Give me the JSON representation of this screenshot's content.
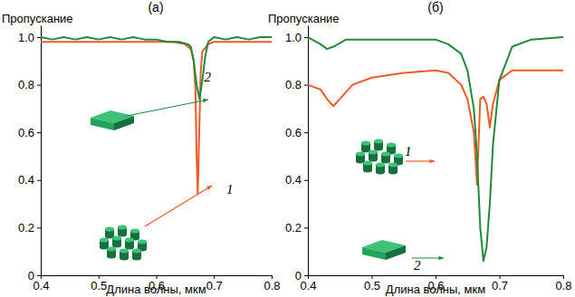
{
  "chart_data": [
    {
      "type": "line",
      "title": "(а)",
      "y_label": "Пропускание",
      "x_label": "Длина волны, мкм",
      "xlim": [
        0.4,
        0.8
      ],
      "xticks": [
        0.4,
        0.5,
        0.6,
        0.7,
        0.8
      ],
      "ylim": [
        0,
        1.05
      ],
      "yticks": [
        0,
        0.2,
        0.4,
        0.6,
        0.8,
        {
          "value": 1,
          "label": "1.0"
        }
      ],
      "series": [
        {
          "name": "1",
          "color": "#f05a24",
          "x": [
            0.4,
            0.45,
            0.5,
            0.55,
            0.6,
            0.63,
            0.65,
            0.66,
            0.665,
            0.668,
            0.67,
            0.672,
            0.674,
            0.677,
            0.68,
            0.69,
            0.7,
            0.75,
            0.8
          ],
          "values": [
            0.98,
            0.98,
            0.98,
            0.98,
            0.98,
            0.98,
            0.97,
            0.95,
            0.9,
            0.78,
            0.5,
            0.34,
            0.55,
            0.85,
            0.94,
            0.97,
            0.98,
            0.98,
            0.98
          ]
        },
        {
          "name": "2",
          "color": "#1e8a3c",
          "x": [
            0.4,
            0.42,
            0.44,
            0.46,
            0.48,
            0.5,
            0.52,
            0.54,
            0.56,
            0.58,
            0.6,
            0.62,
            0.64,
            0.655,
            0.66,
            0.665,
            0.67,
            0.675,
            0.68,
            0.685,
            0.69,
            0.7,
            0.72,
            0.74,
            0.76,
            0.78,
            0.8
          ],
          "values": [
            1.0,
            0.99,
            1.0,
            0.99,
            1.0,
            0.99,
            1.0,
            0.99,
            1.0,
            0.99,
            0.99,
            0.98,
            0.98,
            0.97,
            0.96,
            0.9,
            0.8,
            0.74,
            0.82,
            0.92,
            0.98,
            1.0,
            0.99,
            1.0,
            0.99,
            1.0,
            1.0
          ]
        }
      ]
    },
    {
      "type": "line",
      "title": "(б)",
      "y_label": "Пропускание",
      "x_label": "Длина волны, мкм",
      "xlim": [
        0.4,
        0.8
      ],
      "xticks": [
        0.4,
        0.5,
        0.6,
        0.7,
        0.8
      ],
      "ylim": [
        0,
        1.05
      ],
      "yticks": [
        0,
        0.2,
        0.4,
        0.6,
        0.8,
        {
          "value": 1,
          "label": "1.0"
        }
      ],
      "series": [
        {
          "name": "1",
          "color": "#f05a24",
          "x": [
            0.4,
            0.42,
            0.43,
            0.44,
            0.45,
            0.47,
            0.5,
            0.55,
            0.6,
            0.62,
            0.64,
            0.65,
            0.66,
            0.665,
            0.67,
            0.675,
            0.68,
            0.685,
            0.69,
            0.7,
            0.72,
            0.75,
            0.8
          ],
          "values": [
            0.8,
            0.78,
            0.74,
            0.71,
            0.74,
            0.8,
            0.83,
            0.85,
            0.86,
            0.85,
            0.8,
            0.74,
            0.6,
            0.38,
            0.74,
            0.75,
            0.72,
            0.62,
            0.72,
            0.82,
            0.86,
            0.86,
            0.86
          ]
        },
        {
          "name": "2",
          "color": "#1e8a3c",
          "x": [
            0.4,
            0.42,
            0.43,
            0.44,
            0.46,
            0.5,
            0.55,
            0.6,
            0.62,
            0.64,
            0.65,
            0.66,
            0.665,
            0.67,
            0.675,
            0.68,
            0.685,
            0.69,
            0.7,
            0.72,
            0.75,
            0.8
          ],
          "values": [
            1.0,
            0.97,
            0.95,
            0.96,
            0.99,
            0.99,
            0.99,
            0.99,
            0.97,
            0.93,
            0.86,
            0.7,
            0.5,
            0.2,
            0.06,
            0.12,
            0.3,
            0.55,
            0.82,
            0.96,
            0.99,
            1.0
          ]
        }
      ]
    }
  ]
}
